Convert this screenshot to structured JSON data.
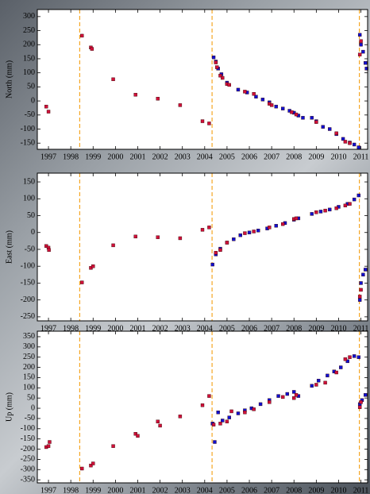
{
  "chart_data": [
    {
      "type": "scatter",
      "ylabel": "North (mm)",
      "xlim": [
        1996.5,
        2011.3
      ],
      "ylim": [
        -172,
        325
      ],
      "xticks": [
        1997,
        1998,
        1999,
        2000,
        2001,
        2002,
        2003,
        2004,
        2005,
        2006,
        2007,
        2008,
        2009,
        2010,
        2011
      ],
      "yticks": [
        300,
        250,
        200,
        150,
        100,
        50,
        0,
        -50,
        -100,
        -150
      ],
      "vlines": [
        1998.4,
        2004.33,
        2010.93
      ],
      "vline_color": "#f5a623",
      "series": [
        {
          "color": "#1010d0",
          "x": [
            2004.4,
            2004.5,
            2004.6,
            2004.75,
            2005.0,
            2005.5,
            2005.9,
            2006.3,
            2006.6,
            2006.9,
            2007.2,
            2007.5,
            2007.8,
            2008.0,
            2008.2,
            2008.4,
            2008.8,
            2009.0,
            2009.3,
            2009.6,
            2009.9,
            2010.2,
            2010.5,
            2010.7,
            2010.9,
            2010.95,
            2011.0,
            2011.1,
            2011.2,
            2011.25
          ],
          "values": [
            155,
            140,
            115,
            95,
            65,
            40,
            30,
            15,
            5,
            -5,
            -20,
            -27,
            -35,
            -42,
            -52,
            -60,
            -60,
            -72,
            -92,
            -100,
            -118,
            -135,
            -148,
            -155,
            -165,
            235,
            200,
            175,
            135,
            115
          ]
        },
        {
          "color": "#d0103a",
          "x": [
            1996.9,
            1997.0,
            1998.5,
            1998.9,
            1998.95,
            1999.9,
            2000.9,
            2001.9,
            2002.9,
            2003.9,
            2004.2,
            2004.5,
            2004.55,
            2004.7,
            2004.8,
            2005.0,
            2005.1,
            2005.8,
            2006.2,
            2006.9,
            2007.0,
            2007.9,
            2008.1,
            2009.0,
            2009.9,
            2010.3,
            2010.5,
            2011.0,
            2010.95
          ],
          "values": [
            -20,
            -38,
            232,
            190,
            185,
            77,
            22,
            8,
            -15,
            -72,
            -80,
            137,
            120,
            90,
            82,
            60,
            57,
            33,
            25,
            -10,
            -15,
            -40,
            -48,
            -75,
            -115,
            -145,
            -150,
            213,
            165
          ]
        }
      ]
    },
    {
      "type": "scatter",
      "ylabel": "East (mm)",
      "xlim": [
        1996.5,
        2011.3
      ],
      "ylim": [
        -262,
        176
      ],
      "xticks": [
        1997,
        1998,
        1999,
        2000,
        2001,
        2002,
        2003,
        2004,
        2005,
        2006,
        2007,
        2008,
        2009,
        2010,
        2011
      ],
      "yticks": [
        150,
        100,
        50,
        0,
        -50,
        -100,
        -150,
        -200,
        -250
      ],
      "vlines": [
        1998.4,
        2004.33,
        2010.93
      ],
      "vline_color": "#f5a623",
      "series": [
        {
          "color": "#1010d0",
          "x": [
            2004.35,
            2004.5,
            2004.7,
            2005.0,
            2005.3,
            2005.6,
            2006.0,
            2006.4,
            2006.8,
            2007.2,
            2007.6,
            2008.0,
            2008.2,
            2008.8,
            2009.2,
            2009.6,
            2010.0,
            2010.4,
            2010.7,
            2010.9,
            2010.95,
            2011.0,
            2011.1,
            2011.2
          ],
          "values": [
            -95,
            -65,
            -48,
            -30,
            -20,
            -8,
            0,
            6,
            12,
            20,
            28,
            38,
            42,
            55,
            62,
            68,
            76,
            85,
            98,
            110,
            -200,
            -150,
            -125,
            -110
          ]
        },
        {
          "color": "#d0103a",
          "x": [
            1996.9,
            1997.0,
            1997.02,
            1998.5,
            1998.9,
            1999.0,
            1999.9,
            2000.9,
            2001.9,
            2002.9,
            2003.9,
            2004.2,
            2004.5,
            2004.7,
            2005.0,
            2005.8,
            2006.2,
            2006.9,
            2007.5,
            2008.0,
            2008.1,
            2009.0,
            2009.4,
            2009.9,
            2010.3,
            2010.5,
            2011.0,
            2010.95
          ],
          "values": [
            -40,
            -45,
            -52,
            -148,
            -105,
            -100,
            -38,
            -12,
            -14,
            -17,
            8,
            15,
            -60,
            -52,
            -30,
            -2,
            3,
            15,
            25,
            40,
            42,
            60,
            65,
            72,
            80,
            85,
            -170,
            -190
          ]
        }
      ]
    },
    {
      "type": "scatter",
      "ylabel": "Up (mm)",
      "xlim": [
        1996.5,
        2011.3
      ],
      "ylim": [
        -365,
        377
      ],
      "xticks": [
        1997,
        1998,
        1999,
        2000,
        2001,
        2002,
        2003,
        2004,
        2005,
        2006,
        2007,
        2008,
        2009,
        2010,
        2011
      ],
      "yticks": [
        350,
        300,
        250,
        200,
        150,
        100,
        50,
        0,
        -50,
        -100,
        -150,
        -200,
        -250,
        -300,
        -350
      ],
      "vlines": [
        1998.4,
        2004.33,
        2010.93
      ],
      "vline_color": "#f5a623",
      "series": [
        {
          "color": "#1010d0",
          "x": [
            2004.35,
            2004.45,
            2004.6,
            2004.8,
            2005.1,
            2005.5,
            2005.8,
            2006.1,
            2006.5,
            2006.9,
            2007.3,
            2007.7,
            2008.0,
            2008.2,
            2008.8,
            2009.1,
            2009.5,
            2009.8,
            2010.1,
            2010.4,
            2010.7,
            2010.9,
            2010.95,
            2011.05,
            2011.2
          ],
          "values": [
            -75,
            -165,
            -20,
            -60,
            -45,
            -25,
            -10,
            0,
            20,
            40,
            60,
            70,
            80,
            60,
            110,
            135,
            160,
            180,
            200,
            230,
            255,
            250,
            20,
            40,
            65
          ]
        },
        {
          "color": "#d0103a",
          "x": [
            1996.9,
            1997.0,
            1997.05,
            1998.5,
            1998.9,
            1999.0,
            1999.9,
            2000.9,
            2001.0,
            2001.9,
            2002.0,
            2002.9,
            2003.9,
            2004.2,
            2004.4,
            2004.7,
            2005.0,
            2005.2,
            2005.8,
            2006.2,
            2006.9,
            2007.5,
            2008.0,
            2008.1,
            2009.0,
            2009.4,
            2009.9,
            2010.3,
            2010.5,
            2011.0,
            2010.95
          ],
          "values": [
            -190,
            -185,
            -165,
            -295,
            -280,
            -270,
            -185,
            -125,
            -135,
            -65,
            -85,
            -40,
            15,
            60,
            -80,
            -75,
            -65,
            -15,
            -20,
            -5,
            30,
            55,
            50,
            65,
            115,
            125,
            175,
            240,
            250,
            30,
            5
          ]
        }
      ]
    }
  ]
}
